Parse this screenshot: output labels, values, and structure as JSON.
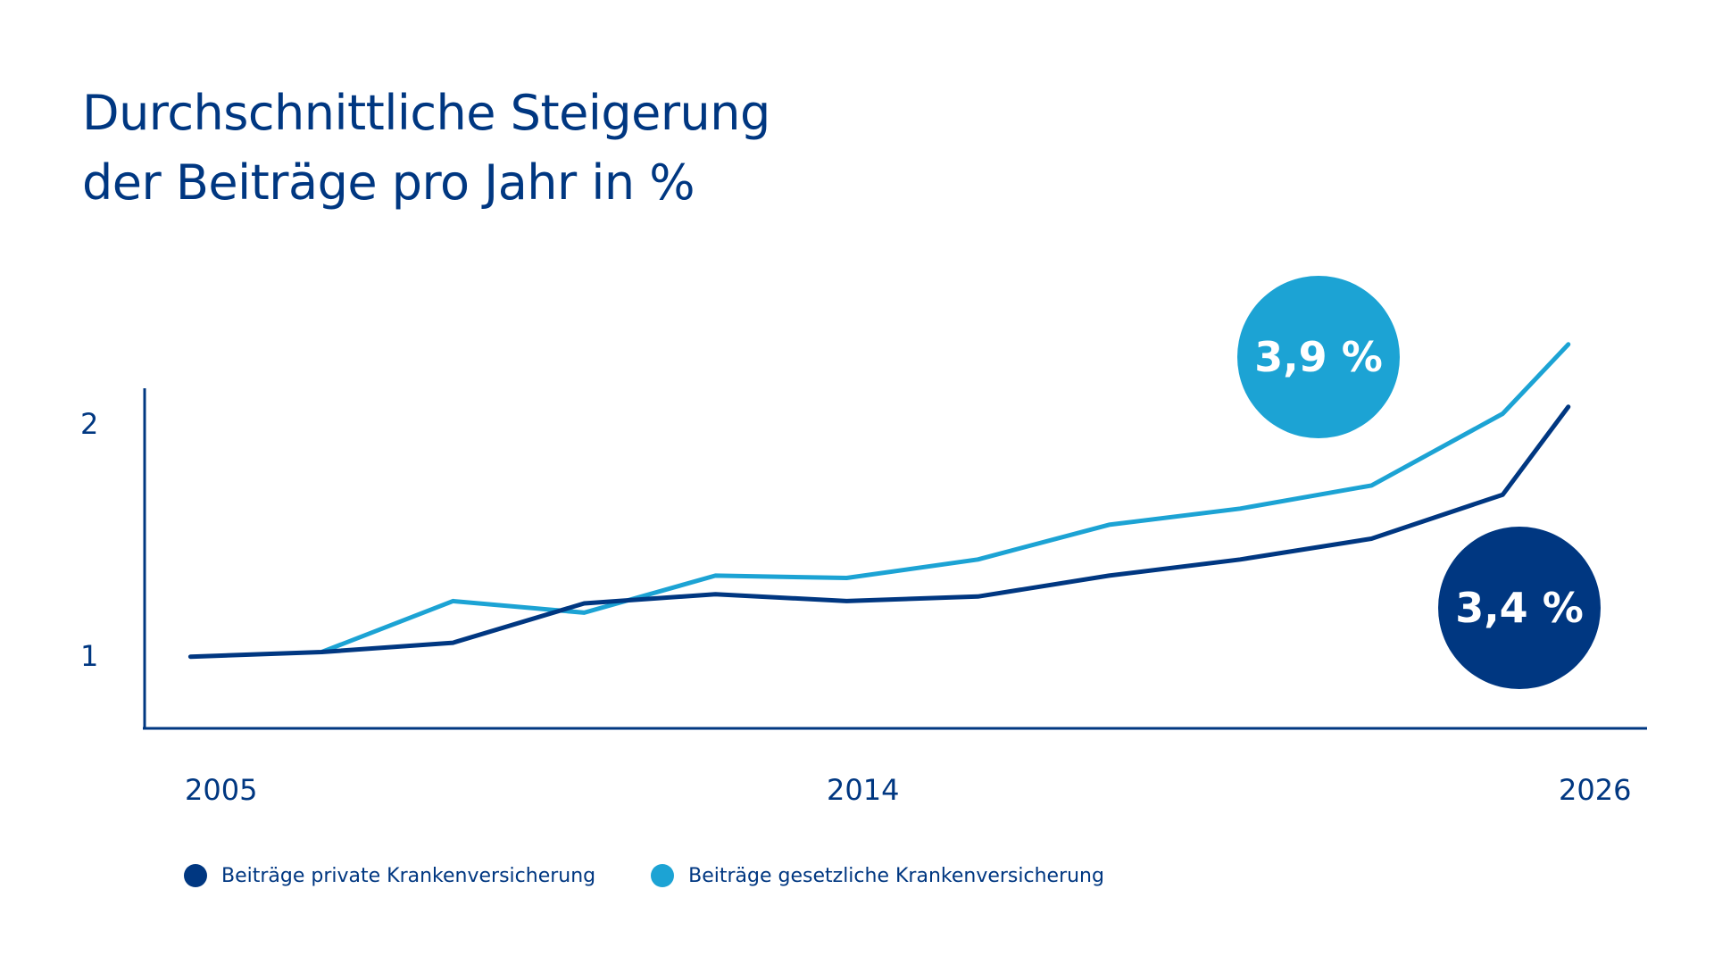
{
  "colors": {
    "private": "#003781",
    "public": "#1ca3d4",
    "axis": "#003781",
    "text": "#003781"
  },
  "title": {
    "line1": "Durchschnittliche Steigerung",
    "line2": "der Beiträge pro Jahr in %"
  },
  "legend": [
    {
      "label": "Beiträge private Krankenversicherung",
      "color": "#003781"
    },
    {
      "label": "Beiträge gesetzliche Krankenversicherung",
      "color": "#1ca3d4"
    }
  ],
  "badges": {
    "public": "3,9 %",
    "private": "3,4 %"
  },
  "chart_data": {
    "type": "line",
    "title": "Durchschnittliche Steigerung der Beiträge pro Jahr in %",
    "xlabel": "",
    "ylabel": "",
    "x_ticks": [
      "2005",
      "2014",
      "2026"
    ],
    "y_ticks": [
      "1",
      "2"
    ],
    "xlim": [
      2004.3,
      2027.2
    ],
    "ylim": [
      0.68,
      2.15
    ],
    "x": [
      2005,
      2007,
      2009,
      2011,
      2013,
      2015,
      2017,
      2019,
      2021,
      2023,
      2025,
      2026
    ],
    "series": [
      {
        "name": "Beiträge private Krankenversicherung",
        "color": "#003781",
        "x": [
          2005,
          2007,
          2009,
          2011,
          2013,
          2015,
          2017,
          2019,
          2021,
          2023,
          2025,
          2026
        ],
        "values": [
          0.99,
          1.01,
          1.05,
          1.22,
          1.26,
          1.23,
          1.25,
          1.34,
          1.41,
          1.5,
          1.69,
          2.07
        ]
      },
      {
        "name": "Beiträge gesetzliche Krankenversicherung",
        "color": "#1ca3d4",
        "x": [
          2007,
          2009,
          2011,
          2013,
          2015,
          2017,
          2019,
          2021,
          2023,
          2025,
          2026
        ],
        "values": [
          1.01,
          1.23,
          1.18,
          1.34,
          1.33,
          1.41,
          1.56,
          1.63,
          1.73,
          2.04,
          2.34
        ]
      }
    ],
    "annotations": [
      "3,9 %",
      "3,4 %"
    ],
    "grid": false,
    "legend_position": "bottom-left"
  }
}
